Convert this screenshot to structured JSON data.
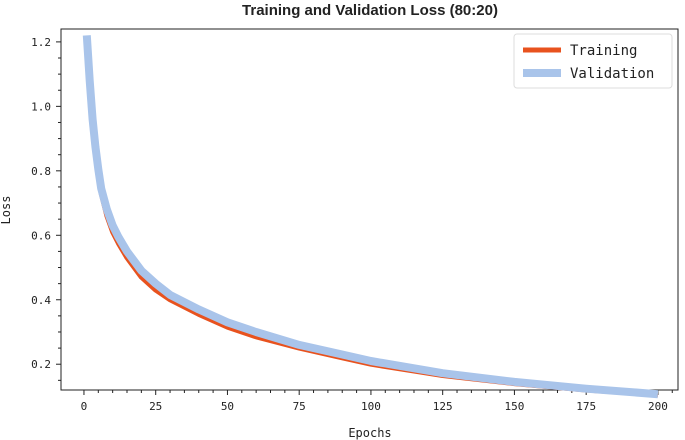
{
  "chart_data": {
    "type": "line",
    "title": "Training and Validation Loss (80:20)",
    "xlabel": "Epochs",
    "ylabel": "Loss",
    "xlim": [
      -8,
      207
    ],
    "ylim": [
      0.12,
      1.24
    ],
    "grid": false,
    "legend_position": "top-right",
    "x_ticks": [
      0,
      25,
      50,
      75,
      100,
      125,
      150,
      175,
      200
    ],
    "y_ticks": [
      0.2,
      0.4,
      0.6,
      0.8,
      1.0,
      1.2
    ],
    "y_tick_labels": [
      "0.2",
      "0.4",
      "0.6",
      "0.8",
      "1.0",
      "1.2"
    ],
    "x": [
      1,
      2,
      3,
      4,
      5,
      6,
      8,
      10,
      12,
      15,
      20,
      25,
      30,
      40,
      50,
      60,
      75,
      90,
      100,
      125,
      150,
      175,
      200
    ],
    "series": [
      {
        "name": "Training",
        "color": "#e8521e",
        "values": [
          1.21,
          1.07,
          0.95,
          0.86,
          0.79,
          0.73,
          0.66,
          0.61,
          0.575,
          0.53,
          0.47,
          0.43,
          0.4,
          0.355,
          0.315,
          0.285,
          0.25,
          0.22,
          0.2,
          0.165,
          0.14,
          0.12,
          0.105
        ]
      },
      {
        "name": "Validation",
        "color": "#a9c4ea",
        "values": [
          1.22,
          1.08,
          0.96,
          0.875,
          0.805,
          0.745,
          0.68,
          0.63,
          0.595,
          0.55,
          0.49,
          0.45,
          0.415,
          0.37,
          0.33,
          0.3,
          0.26,
          0.23,
          0.21,
          0.172,
          0.145,
          0.124,
          0.107
        ]
      }
    ]
  }
}
